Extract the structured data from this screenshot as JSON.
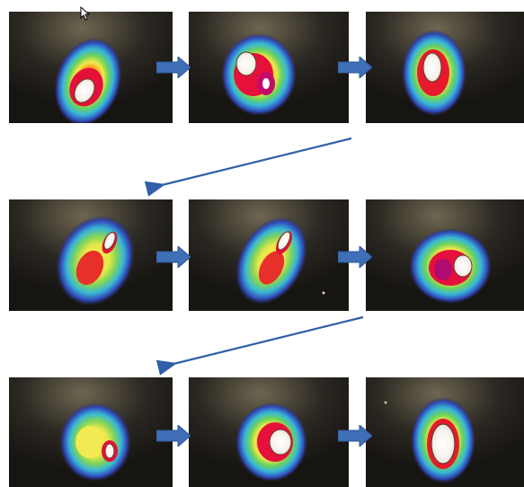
{
  "frames": [
    {
      "id": "frame-1",
      "description_color": "red"
    },
    {
      "id": "frame-2",
      "description_color": "magenta"
    },
    {
      "id": "frame-3",
      "description_color": "red"
    },
    {
      "id": "frame-4",
      "description_color": "red"
    },
    {
      "id": "frame-5",
      "description_color": "red"
    },
    {
      "id": "frame-6",
      "description_color": "magenta"
    },
    {
      "id": "frame-7",
      "description_color": "yellow"
    },
    {
      "id": "frame-8",
      "description_color": "red"
    },
    {
      "id": "frame-9",
      "description_color": "red"
    }
  ],
  "colors": {
    "arrow_fill": "#3f6fb7",
    "connector_line": "#2f5fa8",
    "background": "#ffffff",
    "thermal_dark": "#1d1b17"
  },
  "icons": {
    "right_arrow": "right-arrow-icon",
    "connector_arrow": "diagonal-connector-arrow"
  }
}
